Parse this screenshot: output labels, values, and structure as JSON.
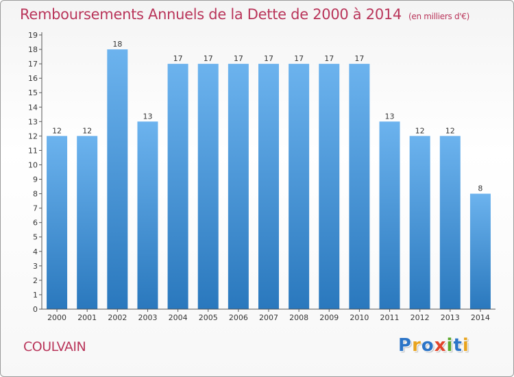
{
  "title": "Remboursements Annuels de la Dette de 2000 à 2014",
  "subtitle": "(en milliers d'€)",
  "commune": "COULVAIN",
  "logo": {
    "letters": [
      "P",
      "r",
      "o",
      "x",
      "i",
      "t",
      "i"
    ],
    "colors": [
      "#2b74c7",
      "#e8a31d",
      "#2b74c7",
      "#e2452c",
      "#5aa82a",
      "#2b74c7",
      "#e8a31d"
    ]
  },
  "colors": {
    "bar_light": "#6cb3ee",
    "bar_dark": "#2a78bd",
    "text": "#333333",
    "accent": "#b9355a"
  },
  "chart_data": {
    "type": "bar",
    "title": "Remboursements Annuels de la Dette de 2000 à 2014",
    "subtitle": "(en milliers d'€)",
    "categories": [
      "2000",
      "2001",
      "2002",
      "2003",
      "2004",
      "2005",
      "2006",
      "2007",
      "2008",
      "2009",
      "2010",
      "2011",
      "2012",
      "2013",
      "2014"
    ],
    "values": [
      12,
      12,
      18,
      13,
      17,
      17,
      17,
      17,
      17,
      17,
      17,
      13,
      12,
      12,
      8
    ],
    "yticks": [
      "0",
      "1",
      "2",
      "3",
      "4",
      "5",
      "6",
      "7",
      "8",
      "9",
      "10",
      "11",
      "12",
      "13",
      "14",
      "15",
      "16",
      "17",
      "18",
      "19"
    ],
    "ylim": [
      0,
      19
    ],
    "grid": false,
    "legend": "none"
  }
}
